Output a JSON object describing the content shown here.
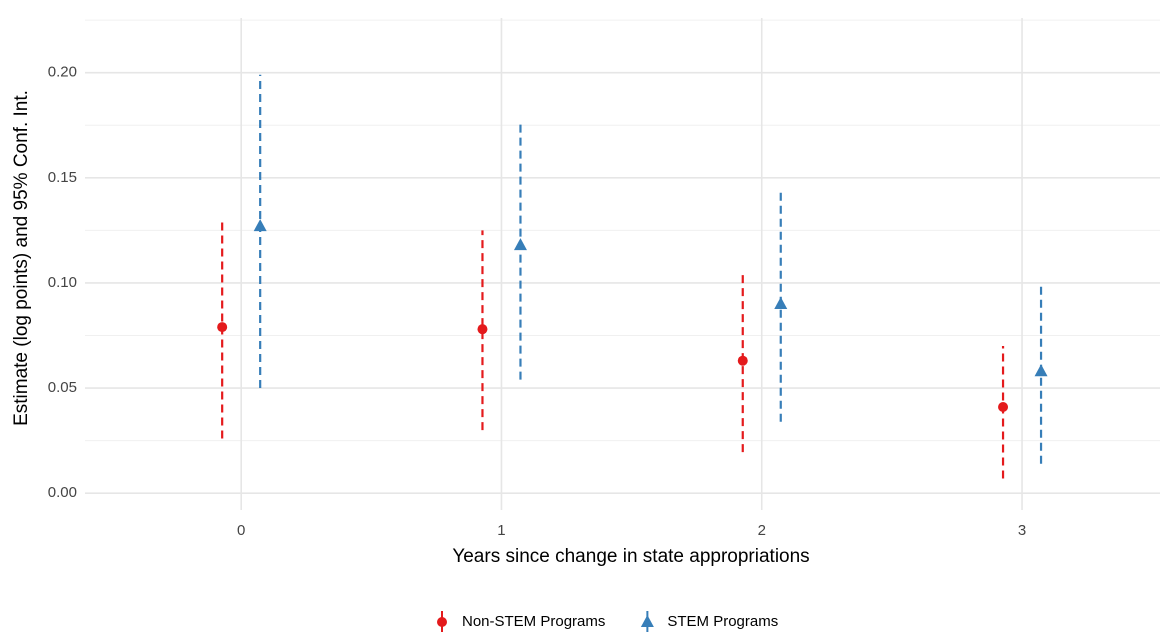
{
  "chart_data": {
    "type": "errorbar",
    "x_label": "Years since change in state appropriations",
    "y_label": "Estimate (log points) and 95% Conf. Int.",
    "x": [
      0,
      1,
      2,
      3
    ],
    "xlim": [
      -0.6,
      3.53
    ],
    "xticks": [
      0,
      1,
      2,
      3
    ],
    "ylim": [
      -0.008,
      0.226
    ],
    "yticks": [
      {
        "value": 0,
        "label": "0.00"
      },
      {
        "value": 0.05,
        "label": "0.05"
      },
      {
        "value": 0.1,
        "label": "0.10"
      },
      {
        "value": 0.15,
        "label": "0.15"
      },
      {
        "value": 0.2,
        "label": "0.20"
      }
    ],
    "grid": true,
    "legend": "bottom",
    "series": [
      {
        "name": "Non-STEM Programs",
        "color": "#e41a1c",
        "marker": "circle",
        "values": [
          0.079,
          0.078,
          0.063,
          0.041
        ],
        "lower": [
          0.026,
          0.03,
          0.0195,
          0.007
        ],
        "upper": [
          0.131,
          0.125,
          0.106,
          0.07
        ]
      },
      {
        "name": "STEM Programs",
        "color": "#377eb8",
        "marker": "triangle",
        "values": [
          0.127,
          0.118,
          0.09,
          0.058
        ],
        "lower": [
          0.05,
          0.054,
          0.034,
          0.014
        ],
        "upper": [
          0.199,
          0.176,
          0.144,
          0.1
        ]
      }
    ]
  }
}
